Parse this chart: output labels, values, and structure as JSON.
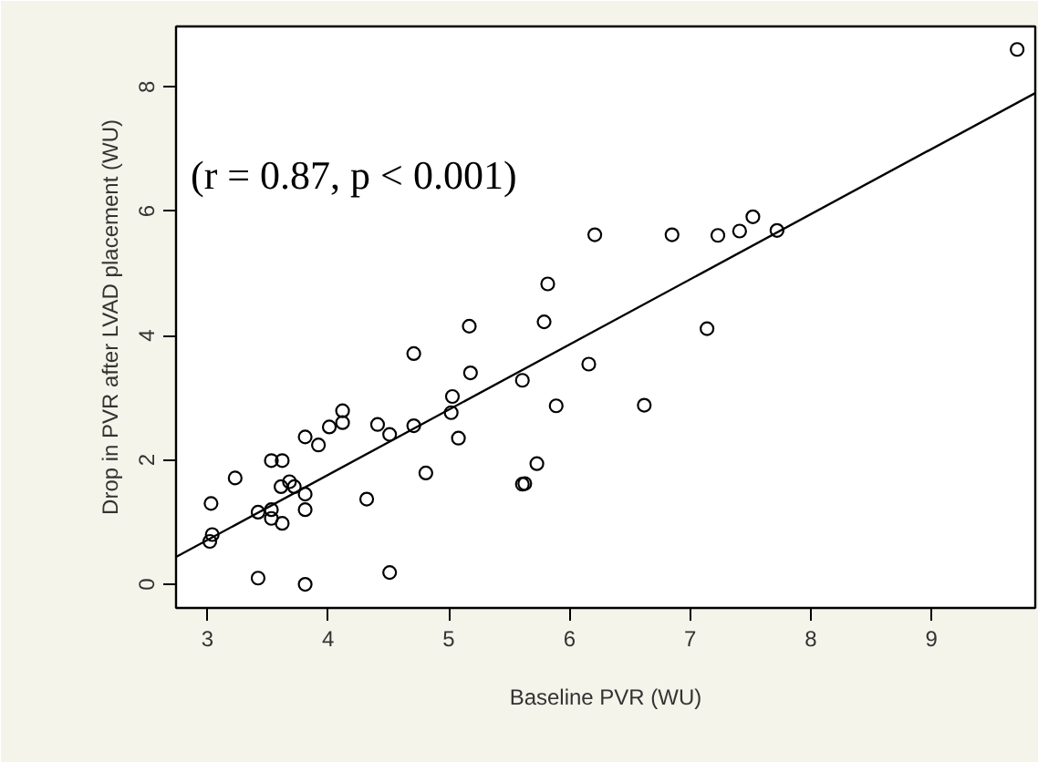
{
  "chart_data": {
    "type": "scatter",
    "xlabel": "Baseline PVR (WU)",
    "ylabel": "Drop in PVR after LVAD placement (WU)",
    "annotations": [
      "(r = 0.87,  p < 0.001)"
    ],
    "xlim": [
      2.74,
      9.86
    ],
    "ylim": [
      -0.38,
      8.97
    ],
    "xticks": [
      3,
      4,
      5,
      6,
      7,
      8,
      9
    ],
    "yticks": [
      0,
      2,
      4,
      6,
      8
    ],
    "grid": false,
    "series": [
      {
        "marker": "circle",
        "color": "#000000",
        "x": [
          3.03,
          3.04,
          3.02,
          3.23,
          3.42,
          3.42,
          3.53,
          3.53,
          3.53,
          3.62,
          3.62,
          3.61,
          3.68,
          3.72,
          3.81,
          3.81,
          3.81,
          3.81,
          3.92,
          4.01,
          4.12,
          4.12,
          4.32,
          4.41,
          4.51,
          4.51,
          4.71,
          4.71,
          4.81,
          5.02,
          5.03,
          5.08,
          5.17,
          5.18,
          5.61,
          5.61,
          5.63,
          5.73,
          5.79,
          5.82,
          5.89,
          6.16,
          6.21,
          6.62,
          6.85,
          7.14,
          7.23,
          7.41,
          7.52,
          7.72,
          9.71
        ],
        "values": [
          1.3,
          0.8,
          0.69,
          1.71,
          1.16,
          0.1,
          1.2,
          1.06,
          1.99,
          1.99,
          0.98,
          1.57,
          1.65,
          1.57,
          1.45,
          1.2,
          2.37,
          0.0,
          2.24,
          2.53,
          2.79,
          2.6,
          1.37,
          2.57,
          2.41,
          0.19,
          3.71,
          2.55,
          1.79,
          2.76,
          3.02,
          2.35,
          4.15,
          3.4,
          3.28,
          1.61,
          1.62,
          1.94,
          4.22,
          4.83,
          2.87,
          3.54,
          5.62,
          2.88,
          5.62,
          4.11,
          5.61,
          5.68,
          5.91,
          5.69,
          8.6
        ]
      },
      {
        "type": "line",
        "color": "#000000",
        "line_style": "solid",
        "x": [
          2.74,
          9.86
        ],
        "values": [
          0.44,
          7.9
        ]
      }
    ]
  }
}
